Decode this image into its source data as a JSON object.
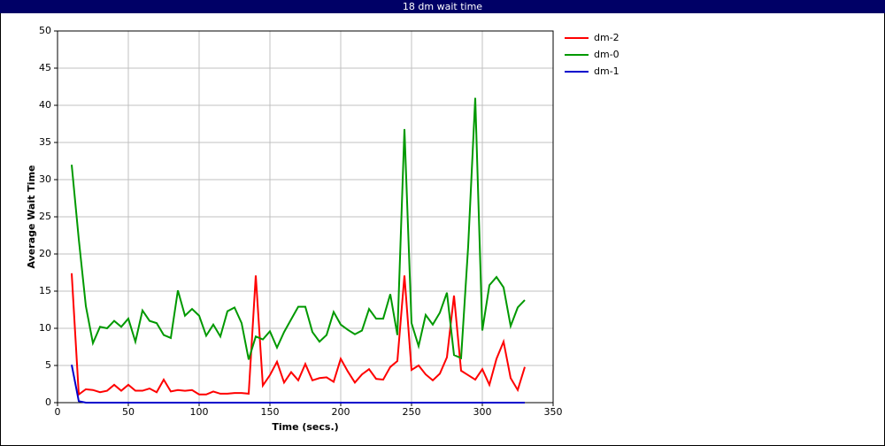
{
  "chart_data": {
    "type": "line",
    "title": "18 dm wait time",
    "x_label": "Time (secs.)",
    "y_label": "Average Wait Time",
    "x": [
      10,
      15,
      20,
      25,
      30,
      35,
      40,
      45,
      50,
      55,
      60,
      65,
      70,
      75,
      80,
      85,
      90,
      95,
      100,
      105,
      110,
      115,
      120,
      125,
      130,
      135,
      140,
      145,
      150,
      155,
      160,
      165,
      170,
      175,
      180,
      185,
      190,
      195,
      200,
      205,
      210,
      215,
      220,
      225,
      230,
      235,
      240,
      245,
      250,
      255,
      260,
      265,
      270,
      275,
      280,
      285,
      290,
      295,
      300,
      305,
      310,
      315,
      320,
      325,
      330
    ],
    "series": [
      {
        "name": "dm-2",
        "color": "#ff0000",
        "values": [
          17.4,
          1.1,
          1.8,
          1.7,
          1.4,
          1.6,
          2.4,
          1.6,
          2.4,
          1.6,
          1.6,
          1.9,
          1.4,
          3.1,
          1.5,
          1.7,
          1.6,
          1.7,
          1.1,
          1.1,
          1.5,
          1.2,
          1.2,
          1.3,
          1.3,
          1.2,
          17.1,
          2.3,
          3.7,
          5.5,
          2.7,
          4.1,
          3,
          5.2,
          3,
          3.3,
          3.4,
          2.8,
          5.9,
          4.2,
          2.7,
          3.8,
          4.5,
          3.2,
          3.1,
          4.8,
          5.6,
          17.1,
          4.4,
          5,
          3.8,
          3,
          3.9,
          6.1,
          14.4,
          4.3,
          3.7,
          3.1,
          4.5,
          2.4,
          5.9,
          8.2,
          3.3,
          1.7,
          4.8
        ]
      },
      {
        "name": "dm-0",
        "color": "#009900",
        "values": [
          32,
          22,
          13,
          8,
          10.2,
          10,
          11,
          10.2,
          11.3,
          8.2,
          12.4,
          11,
          10.7,
          9.1,
          8.7,
          15.1,
          11.7,
          12.6,
          11.7,
          9,
          10.5,
          8.9,
          12.3,
          12.8,
          10.7,
          5.8,
          8.9,
          8.5,
          9.6,
          7.4,
          9.5,
          11.2,
          12.9,
          12.9,
          9.5,
          8.2,
          9.1,
          12.2,
          10.5,
          9.8,
          9.2,
          9.7,
          12.6,
          11.3,
          11.3,
          14.6,
          9.1,
          36.8,
          10.7,
          7.6,
          11.8,
          10.5,
          12.1,
          14.8,
          6.4,
          6,
          21,
          41,
          9.7,
          15.8,
          16.9,
          15.5,
          10.3,
          12.8,
          13.8
        ]
      },
      {
        "name": "dm-1",
        "color": "#0000cc",
        "values": [
          5.1,
          0.2,
          0,
          0,
          0,
          0,
          0,
          0,
          0,
          0,
          0,
          0,
          0,
          0,
          0,
          0,
          0,
          0,
          0,
          0,
          0,
          0,
          0,
          0,
          0,
          0,
          0,
          0,
          0,
          0,
          0,
          0,
          0,
          0,
          0,
          0,
          0,
          0,
          0,
          0,
          0,
          0,
          0,
          0,
          0,
          0,
          0,
          0,
          0,
          0,
          0,
          0,
          0,
          0,
          0,
          0,
          0,
          0,
          0,
          0,
          0,
          0,
          0,
          0,
          0
        ]
      }
    ],
    "xlim": [
      0,
      350
    ],
    "xticks": [
      0,
      50,
      100,
      150,
      200,
      250,
      300,
      350
    ],
    "ylim": [
      0,
      50
    ],
    "yticks": [
      0,
      5,
      10,
      15,
      20,
      25,
      30,
      35,
      40,
      45,
      50
    ],
    "grid": true,
    "legend": "right"
  }
}
